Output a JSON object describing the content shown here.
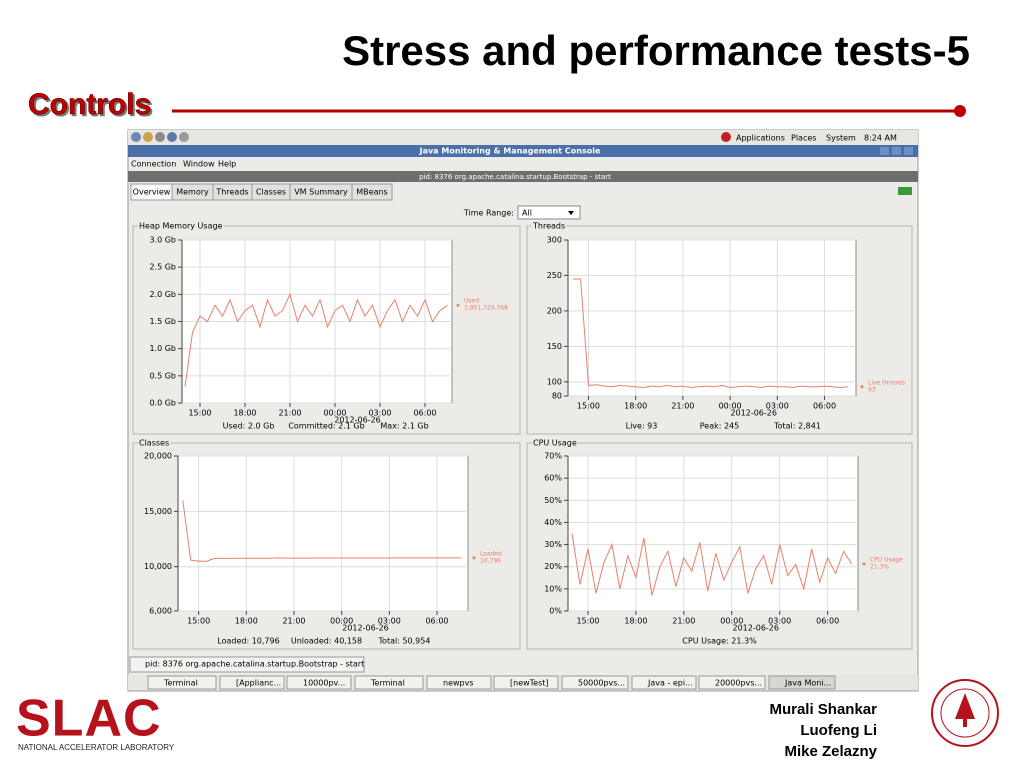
{
  "slide": {
    "title": "Stress and performance tests-5",
    "section": "Controls",
    "logo": "SLAC",
    "logo_subtitle": "NATIONAL ACCELERATOR LABORATORY",
    "authors": [
      "Murali Shankar",
      "Luofeng Li",
      "Mike Zelazny"
    ]
  },
  "desktop": {
    "menus": [
      "Applications",
      "Places",
      "System"
    ],
    "clock": "8:24 AM",
    "taskbar": [
      "Terminal",
      "[Applianc...",
      "10000pv...",
      "Terminal",
      "newpvs",
      "[newTest]",
      "50000pvs...",
      "Java - epi...",
      "20000pvs...",
      "Java Moni..."
    ]
  },
  "window": {
    "title": "Java Monitoring & Management Console",
    "menu": [
      "Connection",
      "Window",
      "Help"
    ],
    "frame_title": "pid: 8376 org.apache.catalina.startup.Bootstrap - start",
    "tabs": [
      "Overview",
      "Memory",
      "Threads",
      "Classes",
      "VM Summary",
      "MBeans"
    ],
    "time_range_label": "Time Range:",
    "time_range_value": "All",
    "status": "pid: 8376 org.apache.catalina.startup.Bootstrap - start"
  },
  "chart_data": [
    {
      "type": "line",
      "title": "Heap Memory Usage",
      "x": [
        14,
        14.5,
        15,
        15.5,
        16,
        16.5,
        17,
        17.5,
        18,
        18.5,
        19,
        19.5,
        20,
        20.5,
        21,
        21.5,
        22,
        22.5,
        23,
        23.5,
        24,
        24.5,
        25,
        25.5,
        26,
        26.5,
        27,
        27.5,
        28,
        28.5,
        29,
        29.5,
        30,
        30.5,
        31,
        31.5
      ],
      "series": [
        {
          "name": "Used",
          "color": "#e8806a",
          "values": [
            0.3,
            1.3,
            1.6,
            1.5,
            1.8,
            1.6,
            1.9,
            1.5,
            1.7,
            1.8,
            1.4,
            1.9,
            1.6,
            1.7,
            2.0,
            1.5,
            1.8,
            1.6,
            1.9,
            1.4,
            1.7,
            1.8,
            1.5,
            1.9,
            1.6,
            1.8,
            1.4,
            1.7,
            1.9,
            1.5,
            1.8,
            1.6,
            1.9,
            1.5,
            1.7,
            1.8
          ]
        }
      ],
      "legend_value": "1,951,729,768",
      "xlim": [
        13.8,
        31.8
      ],
      "xticks": [
        {
          "value": 15,
          "label": "15:00"
        },
        {
          "value": 18,
          "label": "18:00"
        },
        {
          "value": 21,
          "label": "21:00"
        },
        {
          "value": 24,
          "label": "00:00"
        },
        {
          "value": 27,
          "label": "03:00"
        },
        {
          "value": 30,
          "label": "06:00"
        }
      ],
      "x_date_label": "2012-06-26",
      "ylim": [
        0,
        3
      ],
      "yticks": [
        {
          "value": 0,
          "label": "0.0 Gb"
        },
        {
          "value": 0.5,
          "label": "0.5 Gb"
        },
        {
          "value": 1,
          "label": "1.0 Gb"
        },
        {
          "value": 1.5,
          "label": "1.5 Gb"
        },
        {
          "value": 2,
          "label": "2.0 Gb"
        },
        {
          "value": 2.5,
          "label": "2.5 Gb"
        },
        {
          "value": 3,
          "label": "3.0 Gb"
        }
      ],
      "grid": true,
      "summary": [
        "Used: 2.0 Gb",
        "Committed: 2.1 Gb",
        "Max: 2.1 Gb"
      ]
    },
    {
      "type": "line",
      "title": "Threads",
      "x": [
        14,
        14.5,
        15,
        15.5,
        16,
        16.5,
        17,
        17.5,
        18,
        18.5,
        19,
        19.5,
        20,
        20.5,
        21,
        21.5,
        22,
        22.5,
        23,
        23.5,
        24,
        24.5,
        25,
        25.5,
        26,
        26.5,
        27,
        27.5,
        28,
        28.5,
        29,
        29.5,
        30,
        30.5,
        31,
        31.5
      ],
      "series": [
        {
          "name": "Live threads",
          "color": "#e8806a",
          "values": [
            245,
            245,
            95,
            96,
            94,
            93,
            95,
            94,
            93,
            92,
            94,
            93,
            95,
            93,
            94,
            92,
            93,
            94,
            93,
            95,
            92,
            93,
            94,
            93,
            92,
            94,
            93,
            93,
            92,
            94,
            93,
            93,
            94,
            93,
            92,
            93
          ]
        }
      ],
      "legend_value": "93",
      "xlim": [
        13.7,
        32
      ],
      "xticks": [
        {
          "value": 15,
          "label": "15:00"
        },
        {
          "value": 18,
          "label": "18:00"
        },
        {
          "value": 21,
          "label": "21:00"
        },
        {
          "value": 24,
          "label": "00:00"
        },
        {
          "value": 27,
          "label": "03:00"
        },
        {
          "value": 30,
          "label": "06:00"
        }
      ],
      "x_date_label": "2012-06-26",
      "ylim": [
        80,
        300
      ],
      "yticks": [
        80,
        100,
        150,
        200,
        250,
        300
      ],
      "grid": true,
      "summary": [
        "Live: 93",
        "Peak: 245",
        "Total: 2,841"
      ]
    },
    {
      "type": "line",
      "title": "Classes",
      "x": [
        14,
        14.5,
        15,
        15.5,
        16,
        16.5,
        17,
        17.5,
        18,
        18.5,
        19,
        19.5,
        20,
        20.5,
        21,
        21.5,
        22,
        22.5,
        23,
        23.5,
        24,
        24.5,
        25,
        25.5,
        26,
        26.5,
        27,
        27.5,
        28,
        28.5,
        29,
        29.5,
        30,
        30.5,
        31,
        31.5
      ],
      "series": [
        {
          "name": "Loaded",
          "color": "#e8806a",
          "values": [
            16000,
            10600,
            10500,
            10500,
            10750,
            10750,
            10750,
            10760,
            10760,
            10760,
            10770,
            10770,
            10800,
            10780,
            10780,
            10780,
            10780,
            10790,
            10790,
            10790,
            10790,
            10790,
            10790,
            10790,
            10790,
            10790,
            10790,
            10795,
            10795,
            10795,
            10795,
            10795,
            10795,
            10796,
            10796,
            10796
          ]
        }
      ],
      "legend_value": "10,796",
      "xlim": [
        13.7,
        31.95
      ],
      "xticks": [
        {
          "value": 15,
          "label": "15:00"
        },
        {
          "value": 18,
          "label": "18:00"
        },
        {
          "value": 21,
          "label": "21:00"
        },
        {
          "value": 24,
          "label": "00:00"
        },
        {
          "value": 27,
          "label": "03:00"
        },
        {
          "value": 30,
          "label": "06:00"
        }
      ],
      "x_date_label": "2012-06-26",
      "ylim": [
        6000,
        20000
      ],
      "yticks": [
        {
          "value": 6000,
          "label": "6,000"
        },
        {
          "value": 10000,
          "label": "10,000"
        },
        {
          "value": 15000,
          "label": "15,000"
        },
        {
          "value": 20000,
          "label": "20,000"
        }
      ],
      "grid": true,
      "summary": [
        "Loaded: 10,796",
        "Unloaded: 40,158",
        "Total: 50,954"
      ]
    },
    {
      "type": "line",
      "title": "CPU Usage",
      "x": [
        14,
        14.5,
        15,
        15.5,
        16,
        16.5,
        17,
        17.5,
        18,
        18.5,
        19,
        19.5,
        20,
        20.5,
        21,
        21.5,
        22,
        22.5,
        23,
        23.5,
        24,
        24.5,
        25,
        25.5,
        26,
        26.5,
        27,
        27.5,
        28,
        28.5,
        29,
        29.5,
        30,
        30.5,
        31,
        31.5
      ],
      "series": [
        {
          "name": "CPU Usage",
          "color": "#e8806a",
          "values": [
            35,
            12,
            28,
            8,
            22,
            30,
            10,
            25,
            15,
            33,
            7,
            20,
            27,
            11,
            24,
            18,
            31,
            9,
            26,
            14,
            22,
            29,
            8,
            19,
            25,
            12,
            30,
            16,
            21,
            10,
            28,
            13,
            24,
            17,
            27,
            21.3
          ]
        }
      ],
      "legend_value": "21.3%",
      "xlim": [
        13.75,
        31.9
      ],
      "xticks": [
        {
          "value": 15,
          "label": "15:00"
        },
        {
          "value": 18,
          "label": "18:00"
        },
        {
          "value": 21,
          "label": "21:00"
        },
        {
          "value": 24,
          "label": "00:00"
        },
        {
          "value": 27,
          "label": "03:00"
        },
        {
          "value": 30,
          "label": "06:00"
        }
      ],
      "x_date_label": "2012-06-26",
      "ylim": [
        0,
        70
      ],
      "yticks": [
        {
          "value": 0,
          "label": "0%"
        },
        {
          "value": 10,
          "label": "10%"
        },
        {
          "value": 20,
          "label": "20%"
        },
        {
          "value": 30,
          "label": "30%"
        },
        {
          "value": 40,
          "label": "40%"
        },
        {
          "value": 50,
          "label": "50%"
        },
        {
          "value": 60,
          "label": "60%"
        },
        {
          "value": 70,
          "label": "70%"
        }
      ],
      "grid": true,
      "summary": [
        "CPU Usage: 21.3%"
      ]
    }
  ]
}
